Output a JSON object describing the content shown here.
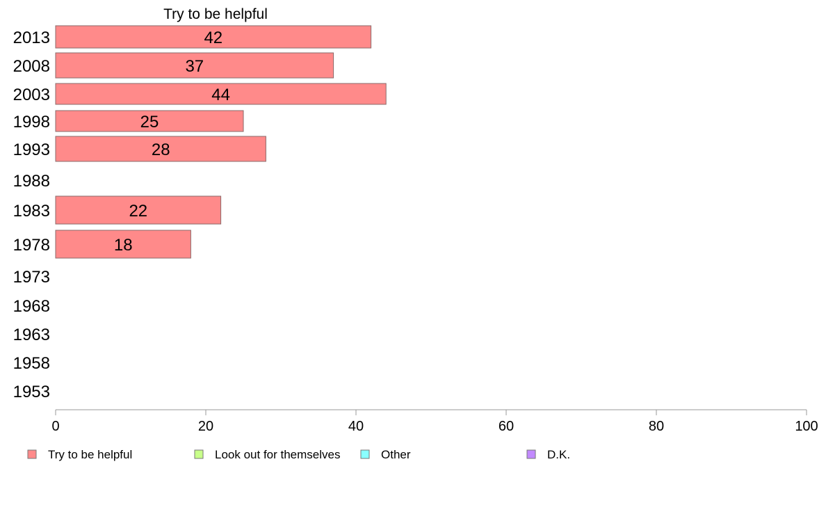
{
  "chart_data": {
    "type": "bar",
    "orientation": "horizontal",
    "title": "Try to be helpful",
    "categories": [
      "2013",
      "2008",
      "2003",
      "1998",
      "1993",
      "1988",
      "1983",
      "1978",
      "1973",
      "1968",
      "1963",
      "1958",
      "1953"
    ],
    "series": [
      {
        "name": "Try to be helpful",
        "color": "#ff8a8a",
        "values": [
          42,
          37,
          44,
          25,
          28,
          null,
          22,
          18,
          null,
          null,
          null,
          null,
          null
        ],
        "labels": [
          "42",
          "37",
          "44",
          "25",
          "28",
          "",
          "22",
          "18",
          "",
          "",
          "",
          "",
          ""
        ]
      }
    ],
    "xlim": [
      0,
      100
    ],
    "xticks": [
      "0",
      "20",
      "40",
      "60",
      "80",
      "100"
    ],
    "grid": false,
    "legend": {
      "placement": "bottom",
      "items": [
        {
          "label": "Try to be helpful",
          "color": "#ff8a8a"
        },
        {
          "label": "Look out for themselves",
          "color": "#c8ff8a"
        },
        {
          "label": "Other",
          "color": "#8affff"
        },
        {
          "label": "D.K.",
          "color": "#c28aff"
        }
      ]
    }
  }
}
